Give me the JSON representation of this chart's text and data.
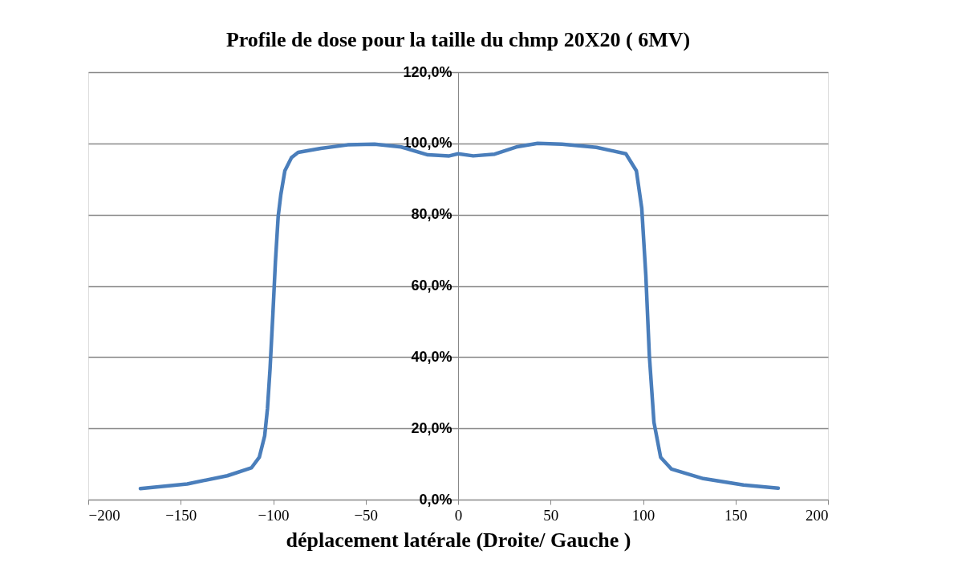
{
  "chart_data": {
    "type": "line",
    "title": "Profile de dose pour la taille du chmp 20X20 ( 6MV)",
    "xlabel": "déplacement latérale (Droite/ Gauche )",
    "x": [
      -171.8,
      -146.5,
      -124.8,
      -111.8,
      -107.5,
      -104.6,
      -103.1,
      -101.7,
      -100.2,
      -98.8,
      -97.3,
      -95.9,
      -93.7,
      -90.1,
      -86.5,
      -74.2,
      -59.7,
      -45.2,
      -30.8,
      -16.4,
      -4.8,
      0,
      8.2,
      19.8,
      31.4,
      43,
      56,
      74.8,
      90.7,
      96.4,
      99.3,
      101.5,
      103.4,
      105.9,
      109.5,
      115.3,
      132.6,
      154.3,
      173.1
    ],
    "series": [
      {
        "color": "#4a7ebb",
        "values": [
          3.1,
          4.4,
          6.7,
          8.9,
          11.9,
          17.9,
          25.5,
          36.7,
          51.7,
          66.7,
          79.5,
          85.5,
          92.3,
          96.0,
          97.5,
          98.6,
          99.6,
          99.8,
          99.0,
          96.8,
          96.5,
          97.1,
          96.5,
          97.0,
          99.0,
          100.0,
          99.8,
          98.9,
          97.1,
          92.3,
          81.8,
          63.0,
          40.5,
          21.7,
          11.9,
          8.6,
          5.9,
          4.1,
          3.2
        ]
      }
    ],
    "xlim": [
      -200,
      200
    ],
    "xticks": [
      -200,
      -150,
      -100,
      -50,
      0,
      50,
      100,
      150,
      200
    ],
    "ylim": [
      0,
      120
    ],
    "yticks": [
      {
        "value": 0,
        "label": "0,0%"
      },
      {
        "value": 20,
        "label": "20,0%"
      },
      {
        "value": 40,
        "label": "40,0%"
      },
      {
        "value": 60,
        "label": "60,0%"
      },
      {
        "value": 80,
        "label": "80,0%"
      },
      {
        "value": 100,
        "label": "100,0%"
      },
      {
        "value": 120,
        "label": "120,0%"
      }
    ],
    "grid": "y",
    "legend": false,
    "marker": "none",
    "line_style": "solid"
  }
}
